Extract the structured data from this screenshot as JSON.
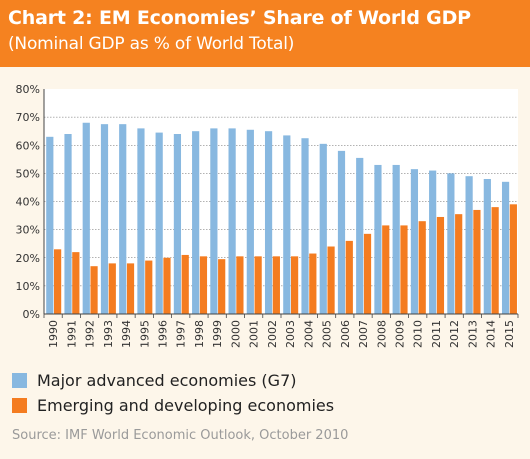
{
  "header": {
    "title": "Chart 2: EM Economies’ Share of World GDP",
    "subtitle": "(Nominal GDP as % of World Total)"
  },
  "colors": {
    "header_bg": "#f58220",
    "g7": "#88b8e0",
    "em": "#f47c20",
    "plot_bg": "#ffffff",
    "grid": "#666666"
  },
  "chart_data": {
    "type": "bar",
    "title": "Chart 2: EM Economies’ Share of World GDP",
    "subtitle": "(Nominal GDP as % of World Total)",
    "categories": [
      "1990",
      "1991",
      "1992",
      "1993",
      "1994",
      "1995",
      "1996",
      "1997",
      "1998",
      "1999",
      "2000",
      "2001",
      "2002",
      "2003",
      "2004",
      "2005",
      "2006",
      "2007",
      "2008",
      "2009",
      "2010",
      "2011",
      "2012",
      "2013",
      "2014",
      "2015"
    ],
    "series": [
      {
        "name": "Major advanced economies (G7)",
        "color": "#88b8e0",
        "values": [
          63,
          64,
          68,
          67.5,
          67.5,
          66,
          64.5,
          64,
          65,
          66,
          66,
          65.5,
          65,
          63.5,
          62.5,
          60.5,
          58,
          55.5,
          53,
          53,
          51.5,
          51,
          50,
          49,
          48,
          47
        ]
      },
      {
        "name": "Emerging and developing economies",
        "color": "#f47c20",
        "values": [
          23,
          22,
          17,
          18,
          18,
          19,
          20,
          21,
          20.5,
          19.5,
          20.5,
          20.5,
          20.5,
          20.5,
          21.5,
          24,
          26,
          28.5,
          31.5,
          31.5,
          33,
          34.5,
          35.5,
          37,
          38,
          39
        ]
      }
    ],
    "ylim": [
      0,
      80
    ],
    "yticks": [
      "0%",
      "10%",
      "20%",
      "30%",
      "40%",
      "50%",
      "60%",
      "70%",
      "80%"
    ],
    "grid": "horizontal dashed",
    "legend": "bottom"
  },
  "legend": [
    {
      "label": "Major advanced economies (G7)",
      "color": "#88b8e0"
    },
    {
      "label": "Emerging and developing economies",
      "color": "#f47c20"
    }
  ],
  "source": "Source: IMF World Economic Outlook, October 2010"
}
